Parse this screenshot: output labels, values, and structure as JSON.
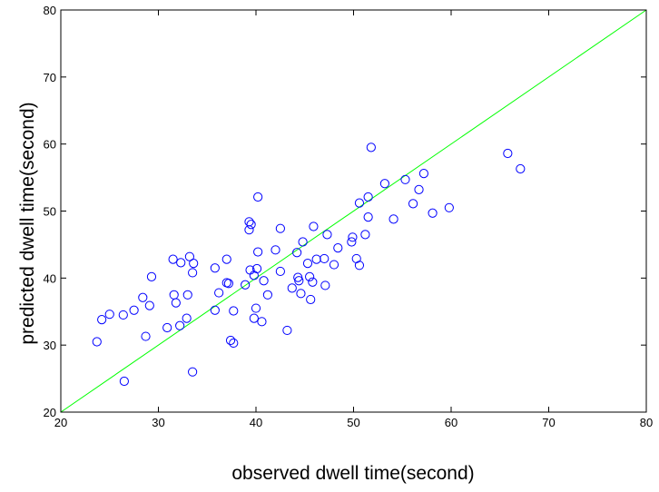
{
  "chart_data": {
    "type": "scatter",
    "title": "",
    "xlabel": "observed dwell time(second)",
    "ylabel": "predicted dwell time(second)",
    "xlim": [
      20,
      80
    ],
    "ylim": [
      20,
      80
    ],
    "xticks": [
      20,
      30,
      40,
      50,
      60,
      70,
      80
    ],
    "yticks": [
      20,
      30,
      40,
      50,
      60,
      70,
      80
    ],
    "grid": false,
    "legend": "none",
    "colors": {
      "markers": "#0000ff",
      "reference_line": "#00ff00",
      "axes": "#000000"
    },
    "reference_line": {
      "from": [
        20,
        20
      ],
      "to": [
        80,
        80
      ]
    },
    "series": [
      {
        "marker": "open-circle",
        "points": [
          [
            23.7,
            30.5
          ],
          [
            24.2,
            33.8
          ],
          [
            25.0,
            34.6
          ],
          [
            26.4,
            34.5
          ],
          [
            26.5,
            24.6
          ],
          [
            27.5,
            35.2
          ],
          [
            28.4,
            37.1
          ],
          [
            28.7,
            31.3
          ],
          [
            29.1,
            35.9
          ],
          [
            29.3,
            40.2
          ],
          [
            30.9,
            32.6
          ],
          [
            31.5,
            42.8
          ],
          [
            31.6,
            37.5
          ],
          [
            31.8,
            36.3
          ],
          [
            32.2,
            32.9
          ],
          [
            32.3,
            42.3
          ],
          [
            32.9,
            34.0
          ],
          [
            33.0,
            37.5
          ],
          [
            33.2,
            43.2
          ],
          [
            33.5,
            40.8
          ],
          [
            33.6,
            42.2
          ],
          [
            33.5,
            26.0
          ],
          [
            35.8,
            35.2
          ],
          [
            35.8,
            41.5
          ],
          [
            36.2,
            37.8
          ],
          [
            37.0,
            42.8
          ],
          [
            37.0,
            39.3
          ],
          [
            37.2,
            39.2
          ],
          [
            37.4,
            30.7
          ],
          [
            37.7,
            30.3
          ],
          [
            37.7,
            35.1
          ],
          [
            38.9,
            39.0
          ],
          [
            39.3,
            48.4
          ],
          [
            39.3,
            47.2
          ],
          [
            39.4,
            41.2
          ],
          [
            39.5,
            48.0
          ],
          [
            39.8,
            40.4
          ],
          [
            39.8,
            34.0
          ],
          [
            40.0,
            35.5
          ],
          [
            40.1,
            41.4
          ],
          [
            40.2,
            52.1
          ],
          [
            40.2,
            43.9
          ],
          [
            40.6,
            33.5
          ],
          [
            40.8,
            39.6
          ],
          [
            41.2,
            37.5
          ],
          [
            42.0,
            44.2
          ],
          [
            42.5,
            47.4
          ],
          [
            42.5,
            41.0
          ],
          [
            43.2,
            32.2
          ],
          [
            43.7,
            38.5
          ],
          [
            44.2,
            43.8
          ],
          [
            44.3,
            40.1
          ],
          [
            44.4,
            39.6
          ],
          [
            44.6,
            37.7
          ],
          [
            44.8,
            45.4
          ],
          [
            45.3,
            42.2
          ],
          [
            45.5,
            40.2
          ],
          [
            45.6,
            36.8
          ],
          [
            45.8,
            39.4
          ],
          [
            45.9,
            47.7
          ],
          [
            46.2,
            42.8
          ],
          [
            47.0,
            42.9
          ],
          [
            47.1,
            38.9
          ],
          [
            47.3,
            46.5
          ],
          [
            48.0,
            42.0
          ],
          [
            48.4,
            44.5
          ],
          [
            49.8,
            45.4
          ],
          [
            49.9,
            46.1
          ],
          [
            50.3,
            42.9
          ],
          [
            50.6,
            41.9
          ],
          [
            50.6,
            51.2
          ],
          [
            51.2,
            46.5
          ],
          [
            51.5,
            49.1
          ],
          [
            51.5,
            52.1
          ],
          [
            51.8,
            59.5
          ],
          [
            53.2,
            54.1
          ],
          [
            54.1,
            48.8
          ],
          [
            55.3,
            54.7
          ],
          [
            56.1,
            51.1
          ],
          [
            56.7,
            53.2
          ],
          [
            57.2,
            55.6
          ],
          [
            58.1,
            49.7
          ],
          [
            59.8,
            50.5
          ],
          [
            65.8,
            58.6
          ],
          [
            67.1,
            56.3
          ]
        ]
      }
    ]
  }
}
